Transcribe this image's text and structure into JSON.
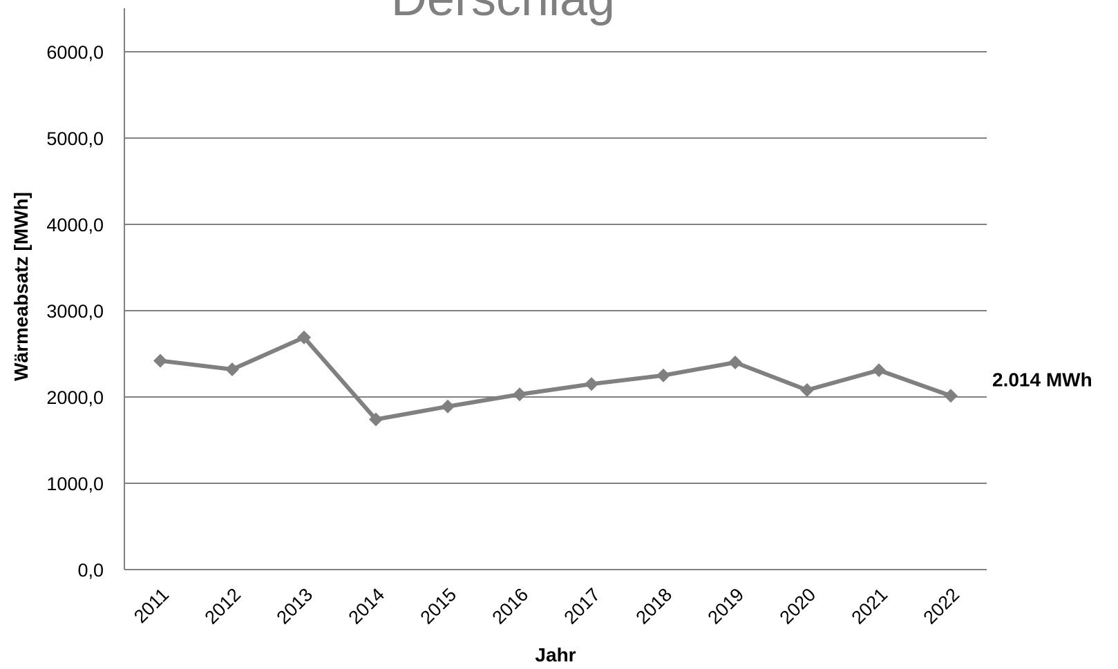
{
  "chart_data": {
    "type": "line",
    "title": "Derschlag",
    "xlabel": "Jahr",
    "ylabel": "Wärmeabsatz [MWh]",
    "x": [
      "2011",
      "2012",
      "2013",
      "2014",
      "2015",
      "2016",
      "2017",
      "2018",
      "2019",
      "2020",
      "2021",
      "2022"
    ],
    "series": [
      {
        "values": [
          2420,
          2320,
          2690,
          1740,
          1890,
          2030,
          2150,
          2250,
          2400,
          2080,
          2310,
          2014
        ],
        "color": "#808080"
      }
    ],
    "ylim": [
      0,
      6000
    ],
    "yticks": [
      "0,0",
      "1000,0",
      "2000,0",
      "3000,0",
      "4000,0",
      "5000,0",
      "6000,0"
    ],
    "grid": true,
    "legend": "none",
    "annotation": "2.014 MWh",
    "colors": {
      "line": "#808080",
      "grid": "#808080",
      "axis_text": "#000000",
      "title": "#808080"
    }
  }
}
